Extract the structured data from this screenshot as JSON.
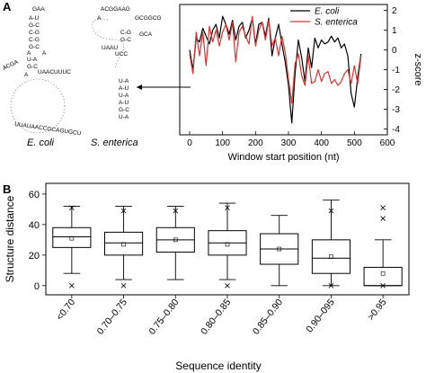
{
  "panel_a_label": "A",
  "panel_b_label": "B",
  "species": {
    "left": "E. coli",
    "right": "S. enterica"
  },
  "structures": {
    "ecoli": [
      "GAA",
      "A-U",
      "G-C",
      "C-G",
      "C-G",
      "G-C",
      "A",
      "A",
      "ACGA",
      "U-A",
      "G-C",
      "A",
      "UAACUUUC",
      "UUAUAACCGCAGUGCU"
    ],
    "senterica": [
      "ACGGAAG",
      "A",
      "GCGGCG",
      "GCA",
      "C-G",
      "UAAU",
      "G-C",
      "UCC",
      "U-A",
      "A-U",
      "U-A",
      "A-U",
      "G-C",
      "U-A"
    ]
  },
  "chart_data": [
    {
      "type": "line",
      "xlabel": "Window start position (nt)",
      "ylabel": "z-score",
      "xlim": [
        -30,
        600
      ],
      "ylim": [
        -4.3,
        2.3
      ],
      "xticks": [
        0,
        100,
        200,
        300,
        400,
        500,
        600
      ],
      "yticks": [
        2,
        1,
        0,
        -1,
        -2,
        -3,
        -4
      ],
      "legend_position": "top-right",
      "series": [
        {
          "name": "E. coli",
          "color": "#000000",
          "x": [
            0,
            10,
            20,
            30,
            40,
            50,
            60,
            70,
            80,
            90,
            100,
            110,
            120,
            130,
            140,
            150,
            160,
            170,
            180,
            190,
            200,
            210,
            220,
            230,
            240,
            250,
            260,
            270,
            280,
            290,
            300,
            310,
            320,
            330,
            340,
            350,
            360,
            370,
            380,
            390,
            400,
            410,
            420,
            430,
            440,
            450,
            460,
            470,
            480,
            490,
            500,
            510,
            520
          ],
          "y": [
            0.0,
            -1.0,
            0.6,
            0.4,
            1.1,
            0.7,
            0.3,
            1.0,
            1.3,
            0.6,
            1.7,
            1.3,
            0.8,
            1.5,
            0.5,
            1.2,
            1.4,
            0.6,
            1.0,
            1.6,
            0.3,
            1.3,
            1.4,
            0.7,
            1.6,
            -0.3,
            0.6,
            1.3,
            0.3,
            -0.6,
            -1.8,
            -3.7,
            -1.2,
            0.5,
            -0.4,
            -1.6,
            0.1,
            -0.9,
            0.6,
            0.1,
            0.5,
            0.3,
            0.4,
            0.7,
            0.4,
            0.6,
            0.1,
            0.3,
            -0.3,
            -2.2,
            -2.9,
            -1.4,
            -0.2
          ]
        },
        {
          "name": "S. enterica",
          "color": "#e03030",
          "x": [
            0,
            10,
            20,
            30,
            40,
            50,
            60,
            70,
            80,
            90,
            100,
            110,
            120,
            130,
            140,
            150,
            160,
            170,
            180,
            190,
            200,
            210,
            220,
            230,
            240,
            250,
            260,
            270,
            280,
            290,
            300,
            310,
            320,
            330,
            340,
            350,
            360,
            370,
            380,
            390,
            400,
            410,
            420,
            430,
            440,
            450,
            460,
            470,
            480,
            490,
            500,
            510,
            520
          ],
          "y": [
            -0.2,
            -1.2,
            0.9,
            -0.3,
            0.9,
            -0.8,
            1.2,
            0.4,
            1.0,
            0.2,
            0.9,
            1.3,
            0.5,
            1.4,
            -0.6,
            0.9,
            1.2,
            0.7,
            0.3,
            1.7,
            0.2,
            1.0,
            1.4,
            0.5,
            1.5,
            0.2,
            0.6,
            -0.3,
            0.7,
            -0.1,
            -1.5,
            -2.7,
            -0.7,
            -0.2,
            -1.3,
            -1.8,
            -0.3,
            -1.7,
            -1.6,
            -1.0,
            -1.6,
            -1.2,
            -1.1,
            -1.7,
            -1.5,
            -1.8,
            -1.6,
            -1.2,
            -1.0,
            -1.7,
            -0.8,
            -1.7,
            -0.3
          ]
        }
      ]
    },
    {
      "type": "box",
      "xlabel": "Sequence identity",
      "ylabel": "Structure distance",
      "ylim": [
        -6,
        67
      ],
      "yticks": [
        0,
        20,
        40,
        60
      ],
      "categories": [
        "<0.70",
        "0.70–0.75",
        "0.75–0.80",
        "0.80–0.85",
        "0.85–0.90",
        "0.90–095",
        ">0.95"
      ],
      "boxes": [
        {
          "min": 8,
          "q1": 25,
          "median": 32,
          "q3": 38,
          "max": 52,
          "mean": 31,
          "extremes": [
            0,
            51
          ]
        },
        {
          "min": 4,
          "q1": 20,
          "median": 28,
          "q3": 35,
          "max": 52,
          "mean": 27,
          "extremes": [
            0,
            49
          ]
        },
        {
          "min": 4,
          "q1": 22,
          "median": 30,
          "q3": 38,
          "max": 52,
          "mean": 30,
          "extremes": [
            49
          ]
        },
        {
          "min": 4,
          "q1": 20,
          "median": 28,
          "q3": 36,
          "max": 54,
          "mean": 27,
          "extremes": [
            0,
            51
          ]
        },
        {
          "min": 0,
          "q1": 14,
          "median": 24,
          "q3": 34,
          "max": 46,
          "mean": 24,
          "extremes": []
        },
        {
          "min": 0,
          "q1": 8,
          "median": 18,
          "q3": 30,
          "max": 56,
          "mean": 19,
          "extremes": [
            49,
            0
          ]
        },
        {
          "min": 0,
          "q1": 0,
          "median": 0,
          "q3": 12,
          "max": 30,
          "mean": 8,
          "extremes": [
            44,
            0,
            51
          ]
        }
      ]
    }
  ]
}
